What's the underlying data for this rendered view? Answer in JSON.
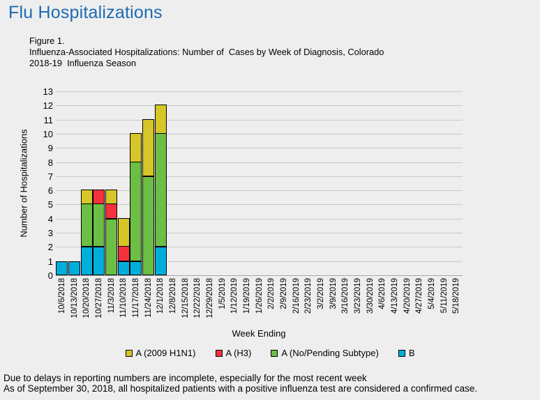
{
  "page": {
    "title": "Flu Hospitalizations"
  },
  "figure": {
    "caption_line1": "Figure 1.",
    "caption_line2": "Influenza-Associated Hospitalizations: Number of  Cases by Week of Diagnosis, Colorado",
    "caption_line3": "2018-19  Influenza Season"
  },
  "chart_data": {
    "type": "bar",
    "stacked": true,
    "grid": true,
    "legend_position": "bottom",
    "xlabel": "Week Ending",
    "ylabel": "Number of Hospitalizations",
    "ylim": [
      0,
      13
    ],
    "yticks": [
      0,
      1,
      2,
      3,
      4,
      5,
      6,
      7,
      8,
      9,
      10,
      11,
      12,
      13
    ],
    "categories": [
      "10/6/2018",
      "10/13/2018",
      "10/20/2018",
      "10/27/2018",
      "11/3/2018",
      "11/10/2018",
      "11/17/2018",
      "11/24/2018",
      "12/1/2018",
      "12/8/2018",
      "12/15/2018",
      "12/22/2018",
      "12/29/2018",
      "1/5/2019",
      "1/12/2019",
      "1/19/2019",
      "1/26/2019",
      "2/2/2019",
      "2/9/2019",
      "2/16/2019",
      "2/23/2019",
      "3/2/2019",
      "3/9/2019",
      "3/16/2019",
      "3/23/2019",
      "3/30/2019",
      "4/6/2019",
      "4/13/2019",
      "4/20/2019",
      "4/27/2019",
      "5/4/2019",
      "5/11/2019",
      "5/18/2019"
    ],
    "series": [
      {
        "name": "A (2009 H1N1)",
        "color": "#D6C628",
        "values": [
          0,
          0,
          1,
          0,
          1,
          2,
          2,
          4,
          2,
          0,
          0,
          0,
          0,
          0,
          0,
          0,
          0,
          0,
          0,
          0,
          0,
          0,
          0,
          0,
          0,
          0,
          0,
          0,
          0,
          0,
          0,
          0,
          0
        ]
      },
      {
        "name": "A (H3)",
        "color": "#F4323E",
        "values": [
          0,
          0,
          0,
          1,
          1,
          1,
          0,
          0,
          0,
          0,
          0,
          0,
          0,
          0,
          0,
          0,
          0,
          0,
          0,
          0,
          0,
          0,
          0,
          0,
          0,
          0,
          0,
          0,
          0,
          0,
          0,
          0,
          0
        ]
      },
      {
        "name": "A (No/Pending Subtype)",
        "color": "#6CBE45",
        "values": [
          0,
          0,
          3,
          3,
          4,
          0,
          7,
          7,
          8,
          0,
          0,
          0,
          0,
          0,
          0,
          0,
          0,
          0,
          0,
          0,
          0,
          0,
          0,
          0,
          0,
          0,
          0,
          0,
          0,
          0,
          0,
          0,
          0
        ]
      },
      {
        "name": "B",
        "color": "#00AEDC",
        "values": [
          1,
          1,
          2,
          2,
          0,
          1,
          1,
          0,
          2,
          0,
          0,
          0,
          0,
          0,
          0,
          0,
          0,
          0,
          0,
          0,
          0,
          0,
          0,
          0,
          0,
          0,
          0,
          0,
          0,
          0,
          0,
          0,
          0
        ]
      }
    ],
    "stack_order_bottom_to_top": [
      "B",
      "A (No/Pending Subtype)",
      "A (H3)",
      "A (2009 H1N1)"
    ],
    "totals": [
      1,
      1,
      6,
      6,
      6,
      4,
      10,
      11,
      12,
      0,
      0,
      0,
      0,
      0,
      0,
      0,
      0,
      0,
      0,
      0,
      0,
      0,
      0,
      0,
      0,
      0,
      0,
      0,
      0,
      0,
      0,
      0,
      0
    ]
  },
  "notes": {
    "line1": "Due to delays in reporting numbers are incomplete, especially for the most recent week",
    "line2": "As of September 30, 2018, all hospitalized patients with a positive influenza test are considered a confirmed case."
  },
  "colors": {
    "title_blue": "#1B6BB3",
    "background": "#EEEEEE",
    "gridline": "#C9C9C9",
    "axis_line": "#A8A8A8",
    "bar_border": "#000000"
  }
}
